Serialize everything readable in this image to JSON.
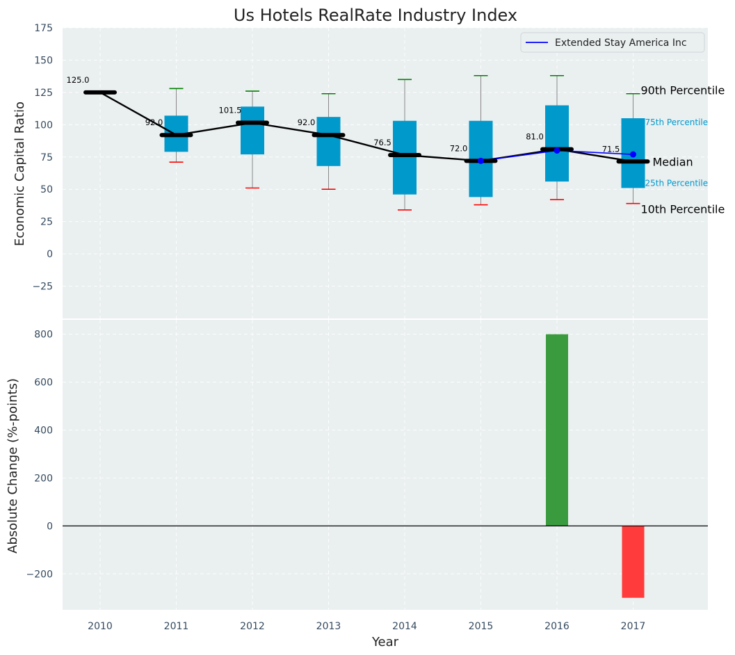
{
  "title": "Us Hotels RealRate Industry Index",
  "chart_data": [
    {
      "type": "box",
      "ylabel": "Economic Capital Ratio",
      "ylim": [
        -50,
        175
      ],
      "yticks": [
        175,
        150,
        125,
        100,
        75,
        50,
        25,
        0,
        -25
      ],
      "ytick_labels": [
        "175",
        "150",
        "125",
        "100",
        "75",
        "50",
        "25",
        "0",
        "−25"
      ],
      "grid": true,
      "legend": {
        "position": "top-right",
        "entries": [
          "Extended Stay America Inc"
        ]
      },
      "categories": [
        "2010",
        "2011",
        "2012",
        "2013",
        "2014",
        "2015",
        "2016",
        "2017"
      ],
      "boxes": [
        {
          "year": "2010",
          "p10": 125,
          "q1": 125,
          "median": 125,
          "q3": 125,
          "p90": 125
        },
        {
          "year": "2011",
          "p10": 71,
          "q1": 79,
          "median": 92,
          "q3": 107,
          "p90": 128
        },
        {
          "year": "2012",
          "p10": 51,
          "q1": 77,
          "median": 101.5,
          "q3": 114,
          "p90": 126
        },
        {
          "year": "2013",
          "p10": 50,
          "q1": 68,
          "median": 92,
          "q3": 106,
          "p90": 124
        },
        {
          "year": "2014",
          "p10": 34,
          "q1": 46,
          "median": 76.5,
          "q3": 103,
          "p90": 135
        },
        {
          "year": "2015",
          "p10": 38,
          "q1": 44,
          "median": 72,
          "q3": 103,
          "p90": 138
        },
        {
          "year": "2016",
          "p10": 42,
          "q1": 56,
          "median": 81,
          "q3": 115,
          "p90": 138
        },
        {
          "year": "2017",
          "p10": 39,
          "q1": 51,
          "median": 71.5,
          "q3": 105,
          "p90": 124
        }
      ],
      "median_labels": [
        "125.0",
        "92.0",
        "101.5",
        "92.0",
        "76.5",
        "72.0",
        "81.0",
        "71.5"
      ],
      "company_series": {
        "name": "Extended Stay America Inc",
        "x": [
          "2015",
          "2016",
          "2017"
        ],
        "values": [
          72,
          80,
          77
        ]
      },
      "annotations": {
        "p90": "90th Percentile",
        "p75": "75th Percentile",
        "median": "Median",
        "p25": "25th Percentile",
        "p10": "10th Percentile"
      }
    },
    {
      "type": "bar",
      "ylabel": "Absolute Change (%-points)",
      "xlabel": "Year",
      "ylim": [
        -350,
        860
      ],
      "yticks": [
        800,
        600,
        400,
        200,
        0,
        -200
      ],
      "ytick_labels": [
        "800",
        "600",
        "400",
        "200",
        "0",
        "−200"
      ],
      "grid": true,
      "categories": [
        "2010",
        "2011",
        "2012",
        "2013",
        "2014",
        "2015",
        "2016",
        "2017"
      ],
      "bars": [
        {
          "year": "2016",
          "value": 800
        },
        {
          "year": "2017",
          "value": -300
        }
      ]
    }
  ],
  "colors": {
    "background": "#eaeff0",
    "box": "#0099cc",
    "median_line": "#000000",
    "company_line": "#0000ff",
    "whisker_top": "#008000",
    "whisker_bottom": "#ff0000",
    "positive_bar": "#3a9b3e",
    "negative_bar": "#ff3b3b",
    "annotation_blue": "#0099cc"
  }
}
